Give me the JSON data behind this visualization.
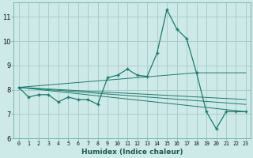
{
  "xlabel": "Humidex (Indice chaleur)",
  "bg_color": "#ceeae8",
  "grid_color": "#a8ccca",
  "line_color": "#1a7a6e",
  "xlim": [
    -0.5,
    23.5
  ],
  "ylim": [
    6.0,
    11.6
  ],
  "yticks": [
    6,
    7,
    8,
    9,
    10,
    11
  ],
  "xticks": [
    0,
    1,
    2,
    3,
    4,
    5,
    6,
    7,
    8,
    9,
    10,
    11,
    12,
    13,
    14,
    15,
    16,
    17,
    18,
    19,
    20,
    21,
    22,
    23
  ],
  "main_x": [
    0,
    1,
    2,
    3,
    4,
    5,
    6,
    7,
    8,
    9,
    10,
    11,
    12,
    13,
    14,
    15,
    16,
    17,
    18,
    19,
    20,
    21,
    22,
    23
  ],
  "main_y": [
    8.1,
    7.7,
    7.8,
    7.8,
    7.5,
    7.7,
    7.6,
    7.6,
    7.4,
    8.5,
    8.6,
    8.85,
    8.6,
    8.55,
    9.5,
    11.3,
    10.5,
    10.1,
    8.7,
    7.1,
    6.4,
    7.1,
    7.1,
    7.1
  ],
  "line2_x": [
    0,
    23
  ],
  "line2_y": [
    8.1,
    7.1
  ],
  "line3_x": [
    0,
    23
  ],
  "line3_y": [
    8.1,
    7.4
  ],
  "line4_x": [
    0,
    18,
    23
  ],
  "line4_y": [
    8.1,
    8.7,
    8.7
  ],
  "line5_x": [
    0,
    9,
    23
  ],
  "line5_y": [
    8.1,
    7.9,
    7.6
  ]
}
